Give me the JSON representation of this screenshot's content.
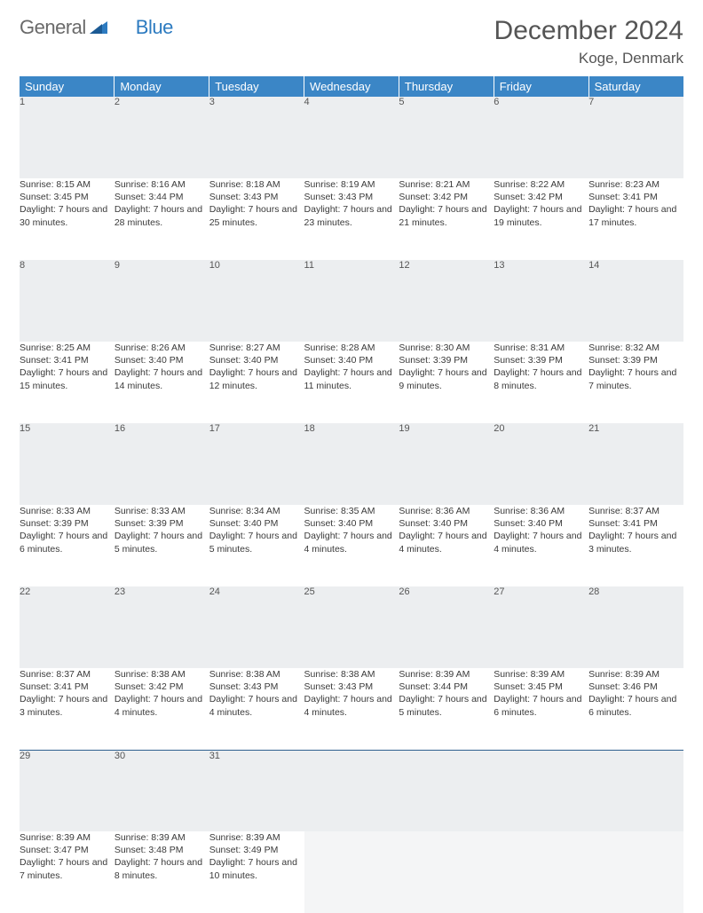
{
  "brand": {
    "part1": "General",
    "part2": "Blue"
  },
  "title": "December 2024",
  "location": "Koge, Denmark",
  "colors": {
    "header_bg": "#3b86c6",
    "header_text": "#ffffff",
    "daynum_bg": "#eceef0",
    "border": "#2d5f8f",
    "text": "#333333",
    "brand_grey": "#6a6a6a",
    "brand_blue": "#2d7bc0"
  },
  "weekdays": [
    "Sunday",
    "Monday",
    "Tuesday",
    "Wednesday",
    "Thursday",
    "Friday",
    "Saturday"
  ],
  "days": [
    {
      "n": "1",
      "sr": "8:15 AM",
      "ss": "3:45 PM",
      "dl": "7 hours and 30 minutes."
    },
    {
      "n": "2",
      "sr": "8:16 AM",
      "ss": "3:44 PM",
      "dl": "7 hours and 28 minutes."
    },
    {
      "n": "3",
      "sr": "8:18 AM",
      "ss": "3:43 PM",
      "dl": "7 hours and 25 minutes."
    },
    {
      "n": "4",
      "sr": "8:19 AM",
      "ss": "3:43 PM",
      "dl": "7 hours and 23 minutes."
    },
    {
      "n": "5",
      "sr": "8:21 AM",
      "ss": "3:42 PM",
      "dl": "7 hours and 21 minutes."
    },
    {
      "n": "6",
      "sr": "8:22 AM",
      "ss": "3:42 PM",
      "dl": "7 hours and 19 minutes."
    },
    {
      "n": "7",
      "sr": "8:23 AM",
      "ss": "3:41 PM",
      "dl": "7 hours and 17 minutes."
    },
    {
      "n": "8",
      "sr": "8:25 AM",
      "ss": "3:41 PM",
      "dl": "7 hours and 15 minutes."
    },
    {
      "n": "9",
      "sr": "8:26 AM",
      "ss": "3:40 PM",
      "dl": "7 hours and 14 minutes."
    },
    {
      "n": "10",
      "sr": "8:27 AM",
      "ss": "3:40 PM",
      "dl": "7 hours and 12 minutes."
    },
    {
      "n": "11",
      "sr": "8:28 AM",
      "ss": "3:40 PM",
      "dl": "7 hours and 11 minutes."
    },
    {
      "n": "12",
      "sr": "8:30 AM",
      "ss": "3:39 PM",
      "dl": "7 hours and 9 minutes."
    },
    {
      "n": "13",
      "sr": "8:31 AM",
      "ss": "3:39 PM",
      "dl": "7 hours and 8 minutes."
    },
    {
      "n": "14",
      "sr": "8:32 AM",
      "ss": "3:39 PM",
      "dl": "7 hours and 7 minutes."
    },
    {
      "n": "15",
      "sr": "8:33 AM",
      "ss": "3:39 PM",
      "dl": "7 hours and 6 minutes."
    },
    {
      "n": "16",
      "sr": "8:33 AM",
      "ss": "3:39 PM",
      "dl": "7 hours and 5 minutes."
    },
    {
      "n": "17",
      "sr": "8:34 AM",
      "ss": "3:40 PM",
      "dl": "7 hours and 5 minutes."
    },
    {
      "n": "18",
      "sr": "8:35 AM",
      "ss": "3:40 PM",
      "dl": "7 hours and 4 minutes."
    },
    {
      "n": "19",
      "sr": "8:36 AM",
      "ss": "3:40 PM",
      "dl": "7 hours and 4 minutes."
    },
    {
      "n": "20",
      "sr": "8:36 AM",
      "ss": "3:40 PM",
      "dl": "7 hours and 4 minutes."
    },
    {
      "n": "21",
      "sr": "8:37 AM",
      "ss": "3:41 PM",
      "dl": "7 hours and 3 minutes."
    },
    {
      "n": "22",
      "sr": "8:37 AM",
      "ss": "3:41 PM",
      "dl": "7 hours and 3 minutes."
    },
    {
      "n": "23",
      "sr": "8:38 AM",
      "ss": "3:42 PM",
      "dl": "7 hours and 4 minutes."
    },
    {
      "n": "24",
      "sr": "8:38 AM",
      "ss": "3:43 PM",
      "dl": "7 hours and 4 minutes."
    },
    {
      "n": "25",
      "sr": "8:38 AM",
      "ss": "3:43 PM",
      "dl": "7 hours and 4 minutes."
    },
    {
      "n": "26",
      "sr": "8:39 AM",
      "ss": "3:44 PM",
      "dl": "7 hours and 5 minutes."
    },
    {
      "n": "27",
      "sr": "8:39 AM",
      "ss": "3:45 PM",
      "dl": "7 hours and 6 minutes."
    },
    {
      "n": "28",
      "sr": "8:39 AM",
      "ss": "3:46 PM",
      "dl": "7 hours and 6 minutes."
    },
    {
      "n": "29",
      "sr": "8:39 AM",
      "ss": "3:47 PM",
      "dl": "7 hours and 7 minutes."
    },
    {
      "n": "30",
      "sr": "8:39 AM",
      "ss": "3:48 PM",
      "dl": "7 hours and 8 minutes."
    },
    {
      "n": "31",
      "sr": "8:39 AM",
      "ss": "3:49 PM",
      "dl": "7 hours and 10 minutes."
    }
  ],
  "labels": {
    "sunrise": "Sunrise:",
    "sunset": "Sunset:",
    "daylight": "Daylight:"
  }
}
